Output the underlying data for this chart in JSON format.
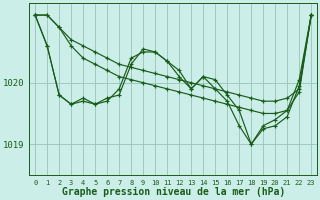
{
  "bg_color": "#cceee8",
  "grid_color": "#a0c8c0",
  "line_color": "#1a5c1a",
  "marker_color": "#1a5c1a",
  "xlabel": "Graphe pression niveau de la mer (hPa)",
  "xlabel_fontsize": 7.0,
  "yticks": [
    1019,
    1020
  ],
  "ylim": [
    1018.5,
    1021.3
  ],
  "xlim": [
    -0.5,
    23.5
  ],
  "xticks": [
    0,
    1,
    2,
    3,
    4,
    5,
    6,
    7,
    8,
    9,
    10,
    11,
    12,
    13,
    14,
    15,
    16,
    17,
    18,
    19,
    20,
    21,
    22,
    23
  ],
  "series": [
    [
      1021.1,
      1021.1,
      1020.9,
      1020.7,
      1020.6,
      1020.5,
      1020.4,
      1020.3,
      1020.25,
      1020.2,
      1020.15,
      1020.1,
      1020.05,
      1020.0,
      1019.95,
      1019.9,
      1019.85,
      1019.8,
      1019.75,
      1019.7,
      1019.7,
      1019.75,
      1019.9,
      1021.1
    ],
    [
      1021.1,
      1021.1,
      1020.9,
      1020.6,
      1020.4,
      1020.3,
      1020.2,
      1020.1,
      1020.05,
      1020.0,
      1019.95,
      1019.9,
      1019.85,
      1019.8,
      1019.75,
      1019.7,
      1019.65,
      1019.6,
      1019.55,
      1019.5,
      1019.5,
      1019.55,
      1019.85,
      1021.1
    ],
    [
      1021.1,
      1020.6,
      1019.8,
      1019.65,
      1019.75,
      1019.65,
      1019.75,
      1019.8,
      1020.3,
      1020.55,
      1020.5,
      1020.35,
      1020.2,
      1019.9,
      1020.1,
      1020.05,
      1019.8,
      1019.55,
      1019.0,
      1019.3,
      1019.4,
      1019.55,
      1020.05,
      1021.1
    ],
    [
      1021.1,
      1020.6,
      1019.8,
      1019.65,
      1019.7,
      1019.65,
      1019.7,
      1019.9,
      1020.4,
      1020.5,
      1020.5,
      1020.35,
      1020.1,
      1019.9,
      1020.1,
      1019.9,
      1019.7,
      1019.3,
      1019.0,
      1019.25,
      1019.3,
      1019.45,
      1019.95,
      1021.1
    ]
  ]
}
